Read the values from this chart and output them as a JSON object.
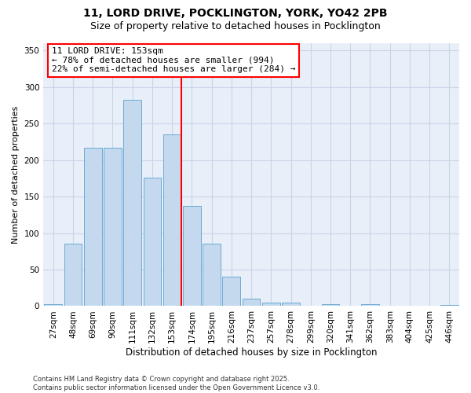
{
  "title": "11, LORD DRIVE, POCKLINGTON, YORK, YO42 2PB",
  "subtitle": "Size of property relative to detached houses in Pocklington",
  "xlabel": "Distribution of detached houses by size in Pocklington",
  "ylabel": "Number of detached properties",
  "categories": [
    "27sqm",
    "48sqm",
    "69sqm",
    "90sqm",
    "111sqm",
    "132sqm",
    "153sqm",
    "174sqm",
    "195sqm",
    "216sqm",
    "237sqm",
    "257sqm",
    "278sqm",
    "299sqm",
    "320sqm",
    "341sqm",
    "362sqm",
    "383sqm",
    "404sqm",
    "425sqm",
    "446sqm"
  ],
  "values": [
    3,
    86,
    217,
    217,
    283,
    176,
    235,
    137,
    85,
    40,
    10,
    5,
    5,
    0,
    3,
    0,
    3,
    0,
    0,
    1,
    2
  ],
  "bar_color": "#c5d9ee",
  "bar_edge_color": "#6aaad4",
  "vline_index": 6,
  "vline_color": "red",
  "annotation_text": "11 LORD DRIVE: 153sqm\n← 78% of detached houses are smaller (994)\n22% of semi-detached houses are larger (284) →",
  "annotation_box_color": "white",
  "annotation_box_edge": "red",
  "ylim": [
    0,
    360
  ],
  "yticks": [
    0,
    50,
    100,
    150,
    200,
    250,
    300,
    350
  ],
  "bg_color": "#e8eff8",
  "grid_color": "#c8d4e8",
  "footer": "Contains HM Land Registry data © Crown copyright and database right 2025.\nContains public sector information licensed under the Open Government Licence v3.0.",
  "title_fontsize": 10,
  "subtitle_fontsize": 9,
  "tick_fontsize": 7.5,
  "ylabel_fontsize": 8,
  "xlabel_fontsize": 8.5,
  "annotation_fontsize": 8
}
